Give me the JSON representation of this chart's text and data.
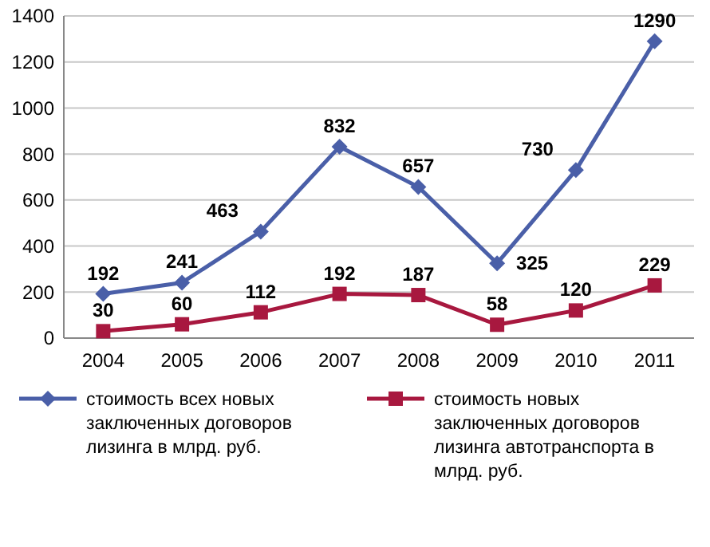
{
  "chart_data": {
    "type": "line",
    "categories": [
      "2004",
      "2005",
      "2006",
      "2007",
      "2008",
      "2009",
      "2010",
      "2011"
    ],
    "series": [
      {
        "name": "стоимость всех новых заключенных договоров лизинга  в млрд. руб.",
        "color": "#4a5fa8",
        "marker": "diamond",
        "values": [
          192,
          241,
          463,
          832,
          657,
          325,
          730,
          1290
        ]
      },
      {
        "name": "стоимость новых заключенных договоров лизинга автотранспорта в млрд. руб.",
        "color": "#a8183f",
        "marker": "square",
        "values": [
          30,
          60,
          112,
          192,
          187,
          58,
          120,
          229
        ]
      }
    ],
    "ylim": [
      0,
      1400
    ],
    "yticks": [
      0,
      200,
      400,
      600,
      800,
      1000,
      1200,
      1400
    ],
    "grid": "y",
    "legend": "bottom",
    "data_labels": true
  }
}
